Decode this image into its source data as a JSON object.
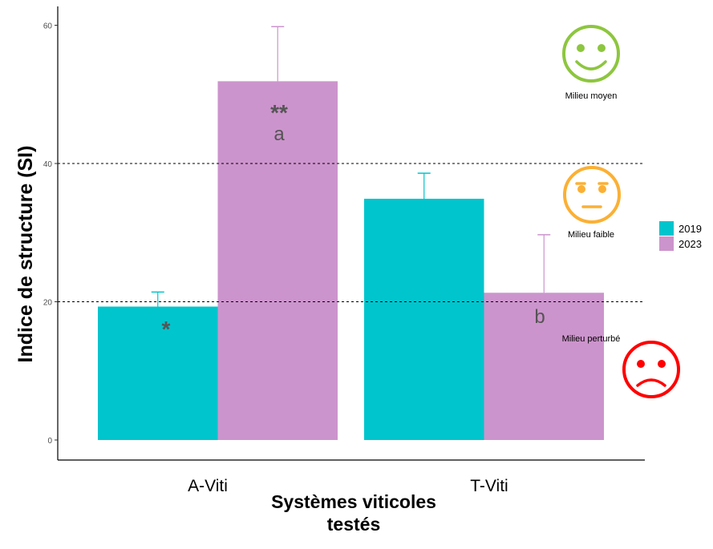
{
  "chart_data": {
    "type": "bar",
    "title": "",
    "xlabel": "Systèmes viticoles testés",
    "xlabel_lines": [
      "Systèmes viticoles",
      "testés"
    ],
    "ylabel": "Indice de structure (SI)",
    "ylim": [
      0,
      63
    ],
    "yticks": [
      0,
      20,
      40,
      60
    ],
    "categories": [
      "A-Viti",
      "T-Viti"
    ],
    "series": [
      {
        "name": "2019",
        "color": "#00C5CD",
        "values": [
          19.3,
          34.9
        ],
        "error_upper": [
          21.4,
          38.6
        ]
      },
      {
        "name": "2023",
        "color": "#CC94CC",
        "values": [
          51.9,
          21.3
        ],
        "error_upper": [
          59.8,
          29.7
        ]
      }
    ],
    "bar_labels": [
      {
        "category": "A-Viti",
        "series": "2019",
        "text": "*"
      },
      {
        "category": "A-Viti",
        "series": "2023",
        "text": "**"
      },
      {
        "category": "A-Viti",
        "series": "2023",
        "text": "a"
      },
      {
        "category": "T-Viti",
        "series": "2023",
        "text": "b"
      }
    ],
    "reference_lines": [
      20,
      40
    ],
    "zones": [
      {
        "label": "Milieu moyen",
        "icon": "smiling-face-icon",
        "color": "#8DC63F"
      },
      {
        "label": "Milieu faible",
        "icon": "neutral-face-icon",
        "color": "#FBB034"
      },
      {
        "label": "Milieu perturbé",
        "icon": "sad-face-icon",
        "color": "#FF0000"
      }
    ],
    "legend_position": "right",
    "grid": false
  }
}
